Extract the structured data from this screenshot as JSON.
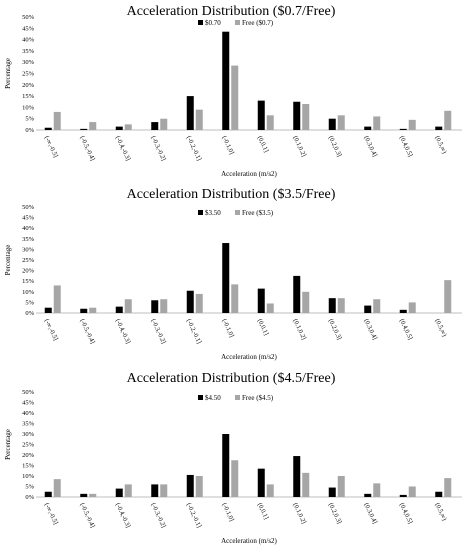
{
  "colors": {
    "paid": "#000000",
    "free": "#a6a6a6",
    "axis": "#bfbfbf"
  },
  "chart_data": [
    {
      "type": "bar",
      "title": "Acceleration Distribution ($0.7/Free)",
      "xlabel": "Acceleration (m/s2)",
      "ylabel": "Percentage",
      "ylim": [
        0,
        50
      ],
      "yticks": [
        "0%",
        "5%",
        "10%",
        "15%",
        "20%",
        "25%",
        "30%",
        "35%",
        "40%",
        "45%",
        "50%"
      ],
      "legend_position": "top-center",
      "grid": false,
      "categories": [
        "(-∞,-0.5]",
        "(-0.5,-0.4]",
        "(-0.4,-0.3]",
        "(-0.3,-0.2]",
        "(-0.2,-0.1]",
        "(-0.1,0]",
        "(0,0.1]",
        "(0.1,0.2]",
        "(0.2,0.3]",
        "(0.3,0.4]",
        "(0.4,0.5]",
        "(0.5,∞)"
      ],
      "series": [
        {
          "name": "$0.70",
          "values": [
            1,
            0.5,
            1.5,
            3.5,
            15,
            43.5,
            13,
            12.5,
            5,
            1.5,
            0.5,
            1.5
          ]
        },
        {
          "name": "Free ($0.7)",
          "values": [
            8,
            3.5,
            2.5,
            5,
            9,
            28.5,
            6.5,
            11.5,
            6.5,
            6,
            4.5,
            8.5
          ]
        }
      ]
    },
    {
      "type": "bar",
      "title": "Acceleration Distribution ($3.5/Free)",
      "xlabel": "Acceleration (m/s2)",
      "ylabel": "Percentage",
      "ylim": [
        0,
        50
      ],
      "yticks": [
        "0%",
        "5%",
        "10%",
        "15%",
        "20%",
        "25%",
        "30%",
        "35%",
        "40%",
        "45%",
        "50%"
      ],
      "legend_position": "top-center",
      "grid": false,
      "categories": [
        "(-∞,-0.5]",
        "(-0.5,-0.4]",
        "(-0.4,-0.3]",
        "(-0.3,-0.2]",
        "(-0.2,-0.1]",
        "(-0.1,0]",
        "(0,0.1]",
        "(0.1,0.2]",
        "(0.2,0.3]",
        "(0.3,0.4]",
        "(0.4,0.5]",
        "(0.5,∞)"
      ],
      "series": [
        {
          "name": "$3.50",
          "values": [
            2.5,
            2,
            3,
            6,
            10.5,
            33,
            11.5,
            17.5,
            7,
            3.5,
            1.5,
            0
          ]
        },
        {
          "name": "Free ($3.5)",
          "values": [
            13,
            2.5,
            6.5,
            6.5,
            9,
            13.5,
            4.5,
            10,
            7,
            6.5,
            5,
            15.5
          ]
        }
      ]
    },
    {
      "type": "bar",
      "title": "Acceleration Distribution ($4.5/Free)",
      "xlabel": "Acceleration (m/s2)",
      "ylabel": "Percentage",
      "ylim": [
        0,
        50
      ],
      "yticks": [
        "0%",
        "5%",
        "10%",
        "15%",
        "20%",
        "25%",
        "30%",
        "35%",
        "40%",
        "45%",
        "50%"
      ],
      "legend_position": "top-center",
      "grid": false,
      "categories": [
        "(-∞,-0.5]",
        "(-0.5,-0.4]",
        "(-0.4,-0.3]",
        "(-0.3,-0.2]",
        "(-0.2,-0.1]",
        "(-0.1,0]",
        "(0,0.1]",
        "(0.1,0.2]",
        "(0.2,0.3]",
        "(0.3,0.4]",
        "(0.4,0.5]",
        "(0.5,∞)"
      ],
      "series": [
        {
          "name": "$4.50",
          "values": [
            2.5,
            1.5,
            4,
            6,
            10.5,
            30,
            13.5,
            19.5,
            4.5,
            1.5,
            1,
            2.5
          ]
        },
        {
          "name": "Free ($4.5)",
          "values": [
            8.5,
            1.5,
            6,
            6,
            10,
            17.5,
            6,
            11.5,
            10,
            6.5,
            5,
            9
          ]
        }
      ]
    }
  ]
}
